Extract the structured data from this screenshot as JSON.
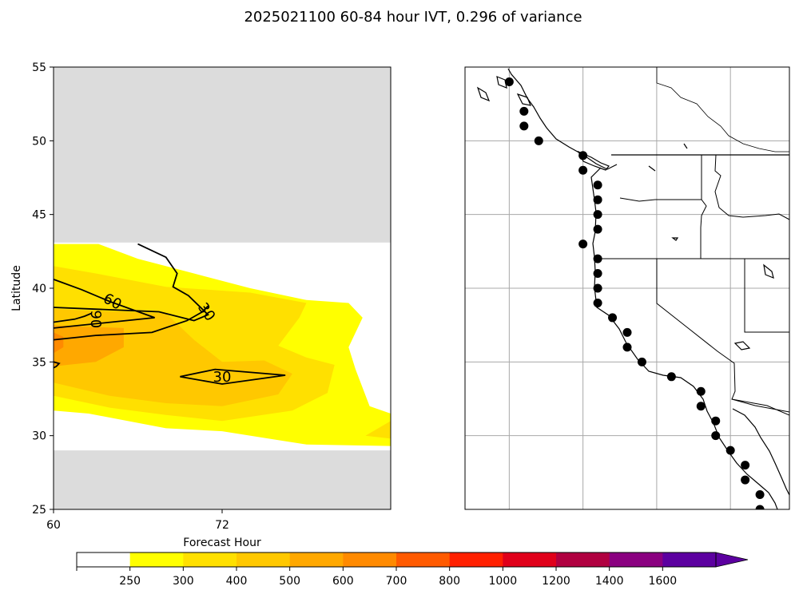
{
  "title": "2025021100 60-84 hour IVT, 0.296 of variance",
  "chart_data": [
    {
      "type": "contour",
      "xlabel": "Forecast Hour",
      "ylabel": "Latitude",
      "xlim": [
        60,
        84
      ],
      "ylim": [
        25,
        55
      ],
      "xticks": [
        {
          "value": 60,
          "label": "60"
        },
        {
          "value": 72,
          "label": "72"
        }
      ],
      "yticks": [
        {
          "value": 25,
          "label": "25"
        },
        {
          "value": 30,
          "label": "30"
        },
        {
          "value": 35,
          "label": "35"
        },
        {
          "value": 40,
          "label": "40"
        },
        {
          "value": 45,
          "label": "45"
        },
        {
          "value": 50,
          "label": "50"
        },
        {
          "value": 55,
          "label": "55"
        }
      ],
      "masked_latitude_ranges": [
        [
          25,
          29
        ],
        [
          43.1,
          55
        ]
      ],
      "filled_contours": [
        {
          "level": "250-300",
          "color": "#ffff00",
          "polygon": [
            [
              60,
              31.7
            ],
            [
              62.5,
              31.5
            ],
            [
              68,
              30.5
            ],
            [
              72,
              30.3
            ],
            [
              76,
              29.7
            ],
            [
              78,
              29.4
            ],
            [
              84,
              29.3
            ],
            [
              84,
              31.5
            ],
            [
              82.5,
              32
            ],
            [
              81.5,
              34.5
            ],
            [
              81,
              36
            ],
            [
              82,
              38
            ],
            [
              81,
              39
            ],
            [
              78,
              39.2
            ],
            [
              74,
              40
            ],
            [
              70,
              41
            ],
            [
              66,
              42
            ],
            [
              63.2,
              43
            ],
            [
              60,
              43
            ]
          ]
        },
        {
          "level": "300-400",
          "color": "#ffe000",
          "polygon": [
            [
              60,
              32.7
            ],
            [
              64,
              31.9
            ],
            [
              68,
              31.4
            ],
            [
              72,
              31
            ],
            [
              77,
              31.7
            ],
            [
              79.5,
              32.9
            ],
            [
              80,
              34.8
            ],
            [
              78,
              35.3
            ],
            [
              76,
              36.1
            ],
            [
              77.5,
              38
            ],
            [
              78,
              39
            ],
            [
              74,
              39.7
            ],
            [
              68,
              40.1
            ],
            [
              63,
              41
            ],
            [
              60,
              41.5
            ]
          ]
        },
        {
          "level": "400-500",
          "color": "#ffc800",
          "polygon": [
            [
              60,
              33.6
            ],
            [
              64,
              32.7
            ],
            [
              68,
              32.2
            ],
            [
              72,
              32
            ],
            [
              76,
              32.8
            ],
            [
              77,
              34.2
            ],
            [
              75,
              35.1
            ],
            [
              72,
              35
            ],
            [
              70,
              36.5
            ],
            [
              68,
              38.3
            ],
            [
              62,
              38.5
            ],
            [
              60,
              38.6
            ]
          ]
        },
        {
          "level": "500-600",
          "color": "#ffa800",
          "polygon": [
            [
              60,
              34.7
            ],
            [
              63,
              35
            ],
            [
              65,
              36
            ],
            [
              65,
              37.3
            ],
            [
              62,
              37.4
            ],
            [
              60,
              37.5
            ]
          ]
        },
        {
          "level": "600-700",
          "color": "#ff8a00",
          "polygon": [
            [
              60,
              35.6
            ],
            [
              60.7,
              36
            ],
            [
              60.7,
              36.7
            ],
            [
              60,
              37
            ]
          ]
        },
        {
          "level": "300-400",
          "color": "#ffe000",
          "polygon": [
            [
              84,
              29.8
            ],
            [
              84,
              31
            ],
            [
              82.2,
              30
            ]
          ]
        }
      ],
      "contour_lines": [
        {
          "level": 30,
          "label": "30",
          "path": [
            [
              66,
              43
            ],
            [
              68,
              42.1
            ],
            [
              68.8,
              41
            ],
            [
              68.5,
              40.1
            ],
            [
              69.6,
              39.5
            ],
            [
              71,
              38.2
            ],
            [
              70,
              37.8
            ],
            [
              67.5,
              38.4
            ],
            [
              60,
              38.7
            ]
          ],
          "label_at": [
            70.9,
            38.4
          ]
        },
        {
          "level": 30,
          "label": "30",
          "path": [
            [
              69,
              34
            ],
            [
              71.5,
              34.5
            ],
            [
              76.5,
              34.1
            ],
            [
              72,
              33.5
            ],
            [
              69,
              34
            ]
          ],
          "label_at": [
            72,
            34
          ]
        },
        {
          "level": 60,
          "label": "60",
          "path": [
            [
              60,
              40.6
            ],
            [
              62,
              39.9
            ],
            [
              64,
              39.1
            ],
            [
              67.2,
              38
            ],
            [
              60,
              37.3
            ]
          ],
          "label_at": [
            64.2,
            39.1
          ]
        },
        {
          "level": 90,
          "label": "90",
          "path": [
            [
              60,
              37.7
            ],
            [
              61.5,
              37.9
            ],
            [
              62.2,
              38.1
            ],
            [
              62.7,
              38.3
            ]
          ],
          "label_at": [
            63,
            37.9
          ]
        },
        {
          "level": 90,
          "label": "",
          "path": [
            [
              60,
              36.5
            ],
            [
              63,
              36.8
            ],
            [
              67,
              37
            ],
            [
              69.5,
              37.8
            ],
            [
              70.6,
              38.4
            ],
            [
              71,
              38.8
            ]
          ],
          "label_at": null
        },
        {
          "level": 90,
          "label": "",
          "path": [
            [
              60,
              35
            ],
            [
              60.4,
              34.9
            ],
            [
              60.2,
              34.7
            ],
            [
              60,
              34.6
            ]
          ],
          "label_at": null
        }
      ]
    },
    {
      "type": "map",
      "projection": "PlateCarree",
      "lon_range": [
        -135,
        -113
      ],
      "lat_range": [
        25,
        55
      ],
      "gridlines_lon": [
        -132,
        -127,
        -122,
        -117
      ],
      "gridlines_lat": [
        30,
        35,
        40,
        45,
        50
      ],
      "points": [
        [
          -132,
          54
        ],
        [
          -131,
          52
        ],
        [
          -131,
          51
        ],
        [
          -130,
          50
        ],
        [
          -127,
          49
        ],
        [
          -127,
          48
        ],
        [
          -126,
          47
        ],
        [
          -126,
          46
        ],
        [
          -126,
          45
        ],
        [
          -126,
          44
        ],
        [
          -127,
          43
        ],
        [
          -126,
          42
        ],
        [
          -126,
          41
        ],
        [
          -126,
          40
        ],
        [
          -126,
          39
        ],
        [
          -125,
          38
        ],
        [
          -124,
          37
        ],
        [
          -124,
          36
        ],
        [
          -123,
          35
        ],
        [
          -121,
          34
        ],
        [
          -119,
          33
        ],
        [
          -119,
          32
        ],
        [
          -118,
          31
        ],
        [
          -118,
          30
        ],
        [
          -117,
          29
        ],
        [
          -116,
          28
        ],
        [
          -116,
          27
        ],
        [
          -115,
          26
        ],
        [
          -115,
          25
        ]
      ]
    }
  ],
  "colorbar": {
    "tick_labels": [
      "250",
      "300",
      "400",
      "500",
      "600",
      "700",
      "800",
      "1000",
      "1200",
      "1400",
      "1600"
    ],
    "colors": [
      "#ffffff",
      "#ffff00",
      "#ffe000",
      "#ffc800",
      "#ffa800",
      "#ff8a00",
      "#ff5a00",
      "#ff2000",
      "#e0001a",
      "#b00040",
      "#8a0080",
      "#5c00a0"
    ],
    "extend_color": "#5c00a0"
  }
}
